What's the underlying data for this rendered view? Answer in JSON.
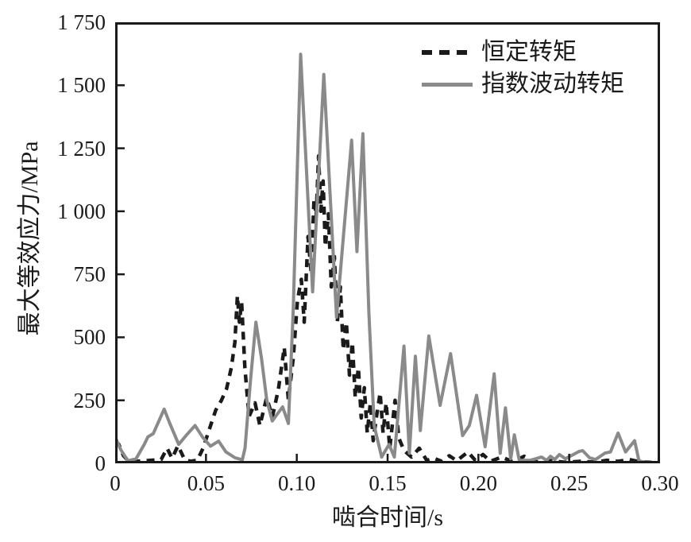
{
  "figure": {
    "background": "#ffffff",
    "axis_color": "#1a1a1a"
  },
  "chart_data": {
    "type": "line",
    "title": "",
    "xlabel": "啮合时间/s",
    "ylabel": "最大等效应力/MPa",
    "xlim": [
      0,
      0.3
    ],
    "ylim": [
      0,
      1750
    ],
    "grid": false,
    "legend_position": "top-right-inside",
    "x_ticks": {
      "values": [
        0,
        0.05,
        0.1,
        0.15,
        0.2,
        0.25,
        0.3
      ],
      "labels": [
        "0",
        "0.05",
        "0.10",
        "0.15",
        "0.20",
        "0.25",
        "0.30"
      ]
    },
    "y_ticks": {
      "values": [
        0,
        250,
        500,
        750,
        1000,
        1250,
        1500,
        1750
      ],
      "labels": [
        "0",
        "250",
        "500",
        "750",
        "1 000",
        "1 250",
        "1 500",
        "1 750"
      ]
    },
    "series": [
      {
        "name": "恒定转矩",
        "style": "dashed",
        "color": "#1a1a1a",
        "line_width": 4.5,
        "dash": [
          10,
          8
        ],
        "points": [
          [
            0.0,
            88
          ],
          [
            0.002,
            75
          ],
          [
            0.0046,
            30
          ],
          [
            0.0078,
            6
          ],
          [
            0.0115,
            8
          ],
          [
            0.016,
            10
          ],
          [
            0.0253,
            15
          ],
          [
            0.0286,
            60
          ],
          [
            0.0313,
            20
          ],
          [
            0.0346,
            70
          ],
          [
            0.0382,
            15
          ],
          [
            0.0415,
            8
          ],
          [
            0.0452,
            12
          ],
          [
            0.0484,
            60
          ],
          [
            0.0521,
            140
          ],
          [
            0.0553,
            210
          ],
          [
            0.0585,
            250
          ],
          [
            0.0613,
            295
          ],
          [
            0.064,
            380
          ],
          [
            0.0659,
            480
          ],
          [
            0.0673,
            665
          ],
          [
            0.0684,
            560
          ],
          [
            0.0696,
            640
          ],
          [
            0.0714,
            380
          ],
          [
            0.0737,
            185
          ],
          [
            0.077,
            240
          ],
          [
            0.0797,
            150
          ],
          [
            0.0834,
            260
          ],
          [
            0.0866,
            185
          ],
          [
            0.0899,
            295
          ],
          [
            0.0931,
            460
          ],
          [
            0.0954,
            250
          ],
          [
            0.0981,
            420
          ],
          [
            0.1004,
            650
          ],
          [
            0.1025,
            730
          ],
          [
            0.1041,
            560
          ],
          [
            0.1062,
            900
          ],
          [
            0.1079,
            760
          ],
          [
            0.1095,
            1050
          ],
          [
            0.1107,
            980
          ],
          [
            0.112,
            1220
          ],
          [
            0.1132,
            1000
          ],
          [
            0.1145,
            1120
          ],
          [
            0.1157,
            860
          ],
          [
            0.1174,
            990
          ],
          [
            0.119,
            700
          ],
          [
            0.1207,
            820
          ],
          [
            0.1223,
            560
          ],
          [
            0.124,
            700
          ],
          [
            0.1256,
            450
          ],
          [
            0.1273,
            560
          ],
          [
            0.129,
            350
          ],
          [
            0.1306,
            480
          ],
          [
            0.1322,
            260
          ],
          [
            0.1339,
            380
          ],
          [
            0.1355,
            180
          ],
          [
            0.1372,
            300
          ],
          [
            0.1388,
            120
          ],
          [
            0.1405,
            240
          ],
          [
            0.1421,
            90
          ],
          [
            0.1438,
            180
          ],
          [
            0.1459,
            280
          ],
          [
            0.1475,
            120
          ],
          [
            0.1492,
            240
          ],
          [
            0.1512,
            60
          ],
          [
            0.1541,
            250
          ],
          [
            0.1562,
            100
          ],
          [
            0.1591,
            50
          ],
          [
            0.1632,
            25
          ],
          [
            0.1674,
            60
          ],
          [
            0.1715,
            12
          ],
          [
            0.1756,
            20
          ],
          [
            0.1798,
            8
          ],
          [
            0.184,
            30
          ],
          [
            0.1881,
            10
          ],
          [
            0.1942,
            45
          ],
          [
            0.1983,
            12
          ],
          [
            0.2025,
            35
          ],
          [
            0.2066,
            8
          ],
          [
            0.2128,
            25
          ],
          [
            0.219,
            6
          ],
          [
            0.2252,
            28
          ],
          [
            0.2314,
            5
          ],
          [
            0.2397,
            10
          ],
          [
            0.248,
            4
          ],
          [
            0.2562,
            8
          ],
          [
            0.2645,
            4
          ],
          [
            0.2707,
            12
          ],
          [
            0.2769,
            8
          ],
          [
            0.2831,
            15
          ],
          [
            0.2893,
            5
          ],
          [
            0.298,
            3
          ]
        ]
      },
      {
        "name": "指数波动转矩",
        "style": "solid",
        "color": "#8a8a8a",
        "line_width": 4,
        "dash": null,
        "points": [
          [
            0.0,
            105
          ],
          [
            0.003,
            55
          ],
          [
            0.007,
            10
          ],
          [
            0.0115,
            18
          ],
          [
            0.016,
            75
          ],
          [
            0.018,
            105
          ],
          [
            0.021,
            118
          ],
          [
            0.027,
            215
          ],
          [
            0.03,
            160
          ],
          [
            0.035,
            75
          ],
          [
            0.039,
            110
          ],
          [
            0.044,
            150
          ],
          [
            0.048,
            105
          ],
          [
            0.0525,
            68
          ],
          [
            0.057,
            88
          ],
          [
            0.061,
            45
          ],
          [
            0.066,
            22
          ],
          [
            0.07,
            14
          ],
          [
            0.0715,
            60
          ],
          [
            0.0745,
            330
          ],
          [
            0.0775,
            560
          ],
          [
            0.0805,
            420
          ],
          [
            0.0835,
            250
          ],
          [
            0.0865,
            168
          ],
          [
            0.0922,
            224
          ],
          [
            0.0954,
            158
          ],
          [
            0.098,
            600
          ],
          [
            0.1021,
            1623
          ],
          [
            0.1087,
            680
          ],
          [
            0.1149,
            1543
          ],
          [
            0.1219,
            580
          ],
          [
            0.1302,
            1282
          ],
          [
            0.1331,
            840
          ],
          [
            0.1364,
            1308
          ],
          [
            0.1397,
            600
          ],
          [
            0.1426,
            150
          ],
          [
            0.1467,
            25
          ],
          [
            0.1508,
            75
          ],
          [
            0.1537,
            25
          ],
          [
            0.159,
            465
          ],
          [
            0.162,
            40
          ],
          [
            0.1653,
            425
          ],
          [
            0.168,
            130
          ],
          [
            0.1727,
            505
          ],
          [
            0.1789,
            230
          ],
          [
            0.1847,
            435
          ],
          [
            0.1913,
            110
          ],
          [
            0.195,
            150
          ],
          [
            0.199,
            270
          ],
          [
            0.2037,
            66
          ],
          [
            0.2087,
            355
          ],
          [
            0.212,
            40
          ],
          [
            0.2149,
            220
          ],
          [
            0.2178,
            18
          ],
          [
            0.2198,
            113
          ],
          [
            0.2225,
            12
          ],
          [
            0.2287,
            12
          ],
          [
            0.2347,
            25
          ],
          [
            0.2376,
            12
          ],
          [
            0.2397,
            28
          ],
          [
            0.242,
            15
          ],
          [
            0.2446,
            35
          ],
          [
            0.2479,
            18
          ],
          [
            0.2554,
            47
          ],
          [
            0.2574,
            50
          ],
          [
            0.2612,
            22
          ],
          [
            0.2645,
            15
          ],
          [
            0.2698,
            41
          ],
          [
            0.2727,
            45
          ],
          [
            0.2769,
            120
          ],
          [
            0.281,
            45
          ],
          [
            0.286,
            90
          ],
          [
            0.2884,
            10
          ],
          [
            0.292,
            3
          ],
          [
            0.3,
            2
          ]
        ]
      }
    ]
  }
}
